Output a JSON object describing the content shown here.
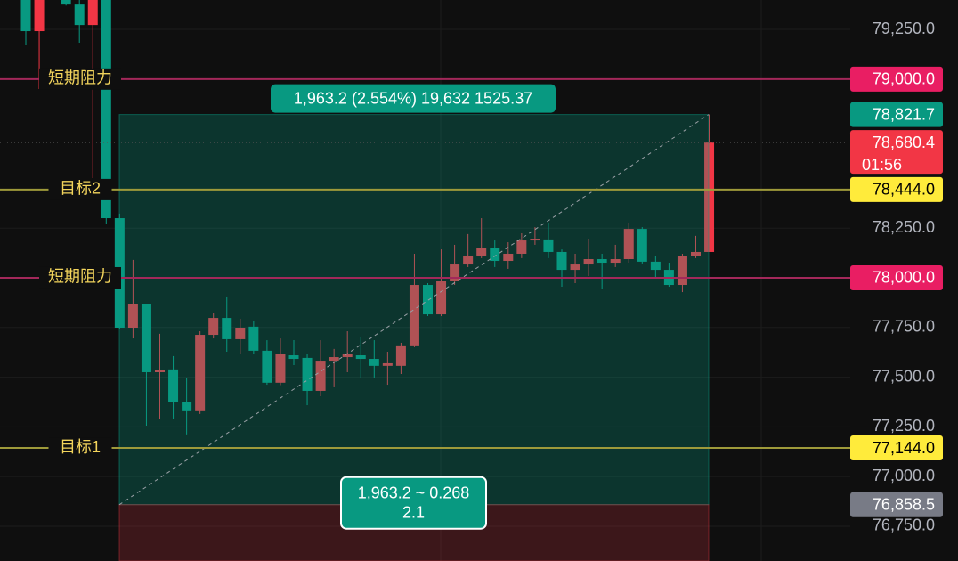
{
  "chart_data": {
    "type": "candlestick",
    "ylim": [
      76575,
      79398
    ],
    "yticks": [
      {
        "value": 79250,
        "label": "79,250.0"
      },
      {
        "value": 78250,
        "label": "78,250.0"
      },
      {
        "value": 77750,
        "label": "77,750.0"
      },
      {
        "value": 77500,
        "label": "77,500.0"
      },
      {
        "value": 77250,
        "label": "77,250.0"
      },
      {
        "value": 77000,
        "label": "77,000.0"
      },
      {
        "value": 76750,
        "label": "76,750.0"
      }
    ],
    "up_color": "#f23645",
    "down_color": "#089981",
    "open": [
      79398,
      79241,
      null,
      79398,
      79375,
      79272,
      79398,
      78300,
      77749,
      77870,
      77525,
      77539,
      77373,
      77333,
      77713,
      77798,
      77691,
      77754,
      77633,
      77472,
      77610,
      77597,
      77431,
      77583,
      77601,
      77610,
      77592,
      77557,
      77557,
      77660,
      77964,
      77816,
      77982,
      78067,
      78112,
      78148,
      78085,
      78121,
      78188,
      78193,
      78130,
      78040,
      78067,
      78094,
      78076,
      78094,
      78246,
      78081,
      78040,
      77964,
      78108,
      78130
    ],
    "high": [
      79443,
      79443,
      null,
      79420,
      79420,
      79420,
      79443,
      78323,
      78090,
      77870,
      77718,
      77606,
      77494,
      77731,
      77821,
      77906,
      77794,
      77785,
      77686,
      77695,
      77686,
      77615,
      77686,
      77642,
      77731,
      77704,
      77686,
      77628,
      77673,
      78121,
      77973,
      78143,
      78166,
      78220,
      78300,
      78188,
      78179,
      78224,
      78255,
      78278,
      78143,
      78121,
      78197,
      78121,
      78166,
      78278,
      78255,
      78108,
      78076,
      78121,
      78211,
      78821.7
    ],
    "low": [
      79174,
      78950,
      null,
      79370,
      79183,
      78502,
      78269,
      77740,
      77695,
      77256,
      77292,
      77292,
      77212,
      77315,
      77695,
      77628,
      77615,
      77615,
      77462,
      77460,
      77561,
      77359,
      77404,
      77449,
      77525,
      77494,
      77494,
      77462,
      77516,
      77651,
      77807,
      77807,
      77964,
      78054,
      78099,
      78054,
      78045,
      78099,
      78166,
      78099,
      77955,
      77973,
      78009,
      77942,
      78054,
      78076,
      78072,
      78000,
      77955,
      77928,
      78099,
      78130
    ],
    "close": [
      79241,
      79398,
      null,
      79375,
      79272,
      79398,
      78300,
      77749,
      77870,
      77525,
      77534,
      77373,
      77333,
      77713,
      77798,
      77691,
      77749,
      77633,
      77472,
      77615,
      77592,
      77431,
      77583,
      77601,
      77615,
      77592,
      77557,
      77570,
      77660,
      77964,
      77816,
      77982,
      78067,
      78112,
      78148,
      78085,
      78121,
      78188,
      78197,
      78130,
      78040,
      78067,
      78094,
      78076,
      78094,
      78246,
      78081,
      78040,
      77964,
      78108,
      78130,
      78680.4
    ],
    "levels": [
      {
        "name": "短期阻力",
        "value": 79000,
        "label": "79,000.0",
        "line_color": "#a3285a",
        "badge_color": "#e91e63",
        "text_color": "#ffffff"
      },
      {
        "name": "目标2",
        "value": 78444,
        "label": "78,444.0",
        "line_color": "#9e9a3a",
        "badge_color": "#ffeb3b",
        "text_color": "#000000"
      },
      {
        "name": "短期阻力",
        "value": 78000,
        "label": "78,000.0",
        "line_color": "#a3285a",
        "badge_color": "#e91e63",
        "text_color": "#ffffff"
      },
      {
        "name": "目标1",
        "value": 77144,
        "label": "77,144.0",
        "line_color": "#9e9a3a",
        "badge_color": "#ffeb3b",
        "text_color": "#000000"
      }
    ],
    "level_name_color": "#f2d45c",
    "price_badges": [
      {
        "value": 78821.7,
        "label": "78,821.7",
        "color": "#089981",
        "text_color": "#ffffff"
      },
      {
        "value": 78680.4,
        "label": "78,680.4",
        "color": "#f23645",
        "text_color": "#ffffff",
        "countdown": "01:56"
      },
      {
        "value": 76858.5,
        "label": "76,858.5",
        "color": "#787b86",
        "text_color": "#ffffff"
      }
    ],
    "measure": {
      "from": 76858.5,
      "to": 78821.7,
      "top_label": "1,963.2 (2.554%) 19,632 1525.37",
      "bottom_label": "1,963.2 ~ 0.268",
      "bottom_sublabel": "2.1"
    }
  }
}
